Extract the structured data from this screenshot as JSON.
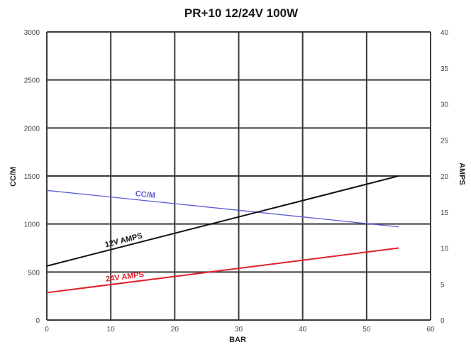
{
  "chart_data": {
    "type": "line",
    "title": "PR+10 12/24V 100W",
    "xlabel": "BAR",
    "ylabel": "CC/M",
    "y2label": "AMPS",
    "xlim": [
      0,
      60
    ],
    "ylim": [
      0,
      3000
    ],
    "y2lim": [
      0,
      40
    ],
    "x_ticks": [
      0,
      10,
      20,
      30,
      40,
      50,
      60
    ],
    "y_ticks": [
      0,
      500,
      1000,
      1500,
      2000,
      2500,
      3000
    ],
    "y2_ticks": [
      0,
      5,
      10,
      15,
      20,
      25,
      30,
      35,
      40
    ],
    "grid": true,
    "series": [
      {
        "name": "CC/M",
        "axis": "left",
        "color": "#5a5ad6",
        "x": [
          0,
          55
        ],
        "y": [
          1350,
          970
        ]
      },
      {
        "name": "12V AMPS",
        "axis": "right",
        "color": "#111111",
        "x": [
          0,
          55
        ],
        "y": [
          7.5,
          20
        ]
      },
      {
        "name": "24V AMPS",
        "axis": "right",
        "color": "#e0202a",
        "x": [
          0,
          55
        ],
        "y": [
          3.8,
          10
        ]
      }
    ]
  }
}
